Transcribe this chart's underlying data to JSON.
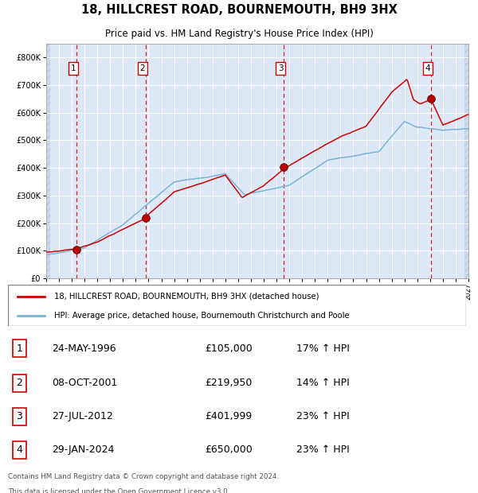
{
  "title1": "18, HILLCREST ROAD, BOURNEMOUTH, BH9 3HX",
  "title2": "Price paid vs. HM Land Registry's House Price Index (HPI)",
  "sales": [
    {
      "num": 1,
      "date": "24-MAY-1996",
      "year": 1996.39,
      "price": 105000
    },
    {
      "num": 2,
      "date": "08-OCT-2001",
      "year": 2001.77,
      "price": 219950
    },
    {
      "num": 3,
      "date": "27-JUL-2012",
      "year": 2012.57,
      "price": 401999
    },
    {
      "num": 4,
      "date": "29-JAN-2024",
      "year": 2024.08,
      "price": 650000
    }
  ],
  "sale_notes": [
    "17% ↑ HPI",
    "14% ↑ HPI",
    "23% ↑ HPI",
    "23% ↑ HPI"
  ],
  "legend_line1": "18, HILLCREST ROAD, BOURNEMOUTH, BH9 3HX (detached house)",
  "legend_line2": "HPI: Average price, detached house, Bournemouth Christchurch and Poole",
  "footer1": "Contains HM Land Registry data © Crown copyright and database right 2024.",
  "footer2": "This data is licensed under the Open Government Licence v3.0.",
  "hpi_color": "#7ab5d8",
  "price_color": "#cc0000",
  "dashed_color": "#cc0000",
  "plot_bg": "#dce8f5",
  "xmin": 1994,
  "xmax": 2027,
  "ymin": 0,
  "ymax": 850000
}
